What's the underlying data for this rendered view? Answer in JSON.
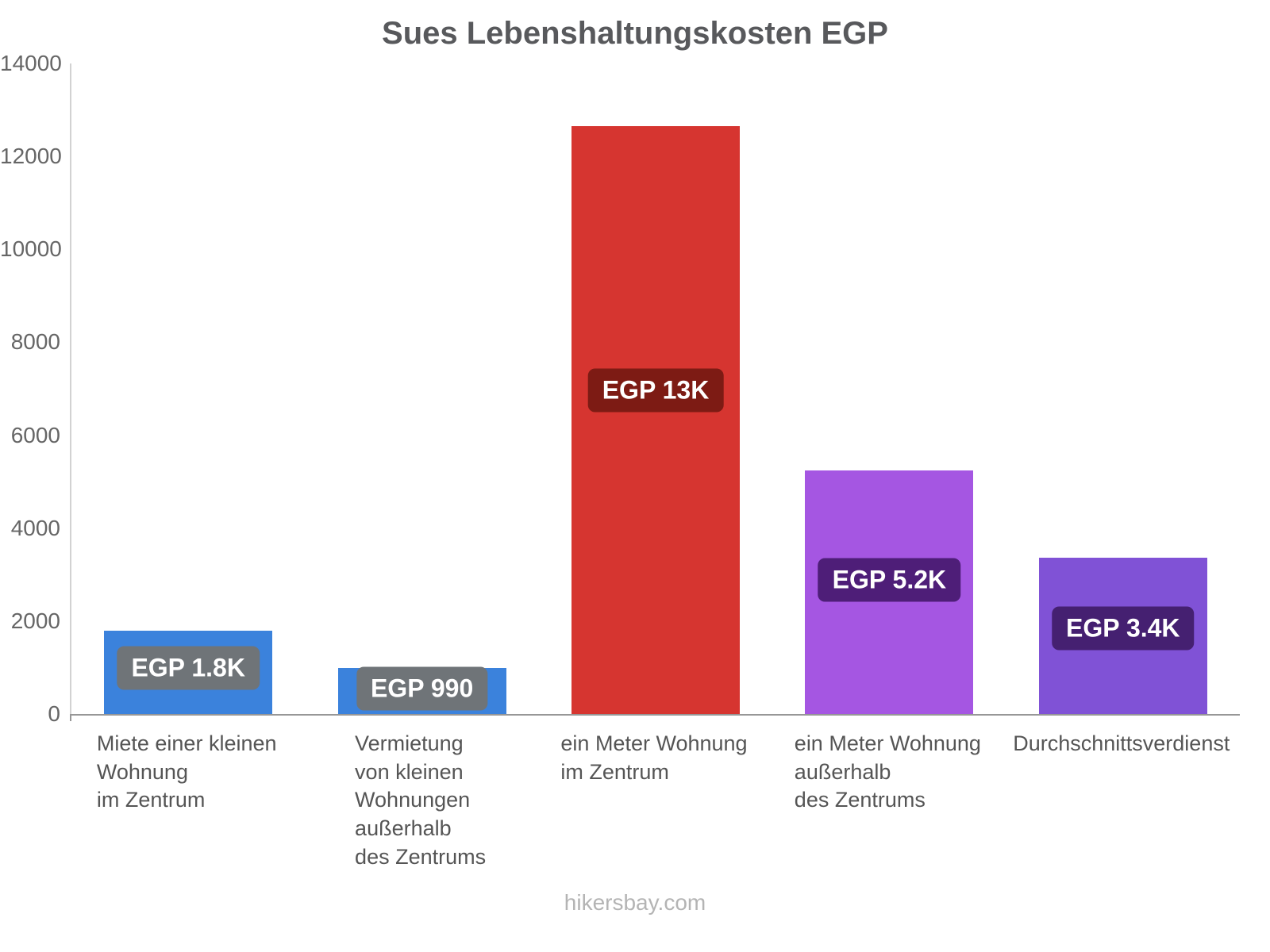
{
  "chart_data": {
    "type": "bar",
    "title": "Sues Lebenshaltungskosten EGP",
    "categories": [
      [
        "Miete einer kleinen",
        "Wohnung",
        "im Zentrum"
      ],
      [
        "Vermietung",
        "von kleinen",
        "Wohnungen",
        "außerhalb",
        "des Zentrums"
      ],
      [
        "ein Meter Wohnung",
        "im Zentrum"
      ],
      [
        "ein Meter Wohnung",
        "außerhalb",
        "des Zentrums"
      ],
      [
        "Durchschnittsverdienst"
      ]
    ],
    "values": [
      1800,
      990,
      12650,
      5240,
      3360
    ],
    "value_labels": [
      "EGP 1.8K",
      "EGP 990",
      "EGP 13K",
      "EGP 5.2K",
      "EGP 3.4K"
    ],
    "bar_colors": [
      "#3b82dc",
      "#3b82dc",
      "#d63530",
      "#a556e2",
      "#8052d6"
    ],
    "label_bg_colors": [
      "#6f7478",
      "#6f7478",
      "#7d1b14",
      "#4e1e78",
      "#452071"
    ],
    "ylim": [
      0,
      14000
    ],
    "yticks": [
      0,
      2000,
      4000,
      6000,
      8000,
      10000,
      12000,
      14000
    ],
    "xlabel": "",
    "ylabel": "",
    "grid": false,
    "legend": "none"
  },
  "footer": {
    "text": "hikersbay.com"
  }
}
